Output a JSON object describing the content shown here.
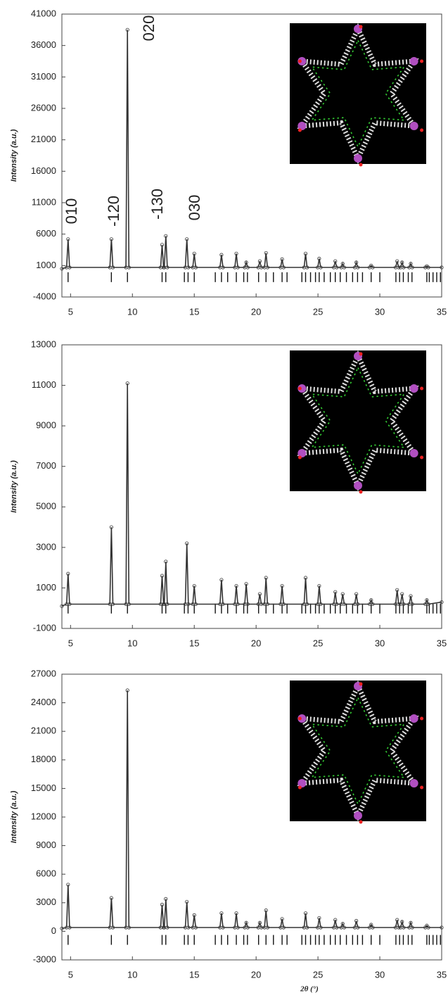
{
  "chart_data": [
    {
      "type": "line",
      "ylabel": "Intensity (a.u.)",
      "color": "#333333",
      "xlim": [
        4.3,
        35
      ],
      "xticks": [
        5,
        10,
        15,
        20,
        25,
        30,
        35
      ],
      "ylim": [
        -4000,
        41000
      ],
      "yticks": [
        -4000,
        1000,
        6000,
        11000,
        16000,
        21000,
        26000,
        31000,
        36000,
        41000
      ],
      "annotations": [
        "010",
        "-120",
        "020",
        "-130",
        "030"
      ],
      "x": [
        4.3,
        4.68,
        4.8,
        4.92,
        8.18,
        8.3,
        8.42,
        9.48,
        9.6,
        9.72,
        12.28,
        12.4,
        12.52,
        12.58,
        12.7,
        12.82,
        14.28,
        14.4,
        14.52,
        14.88,
        15.0,
        15.12,
        17.08,
        17.2,
        17.32,
        18.28,
        18.4,
        18.52,
        19.08,
        19.2,
        19.32,
        20.18,
        20.3,
        20.42,
        20.68,
        20.8,
        20.92,
        21.98,
        22.1,
        22.22,
        23.88,
        24.0,
        24.12,
        24.98,
        25.1,
        25.22,
        26.28,
        26.4,
        26.52,
        26.88,
        27.0,
        27.12,
        27.98,
        28.1,
        28.22,
        29.18,
        29.3,
        29.42,
        31.28,
        31.4,
        31.52,
        31.68,
        31.8,
        31.92,
        32.38,
        32.5,
        32.62,
        33.68,
        33.8,
        33.92,
        35
      ],
      "values": [
        500,
        700,
        5200,
        700,
        700,
        5200,
        700,
        700,
        38500,
        700,
        700,
        4300,
        700,
        700,
        5700,
        700,
        700,
        5200,
        700,
        700,
        2900,
        700,
        700,
        2700,
        700,
        700,
        2900,
        700,
        700,
        1500,
        700,
        700,
        1700,
        700,
        700,
        3000,
        700,
        700,
        2000,
        700,
        700,
        2900,
        700,
        700,
        2100,
        700,
        700,
        1700,
        700,
        700,
        1300,
        700,
        700,
        1500,
        700,
        700,
        1000,
        700,
        700,
        1700,
        700,
        700,
        1500,
        700,
        700,
        1300,
        700,
        700,
        900,
        700,
        700
      ],
      "reflections": [
        4.8,
        8.3,
        9.6,
        12.4,
        12.7,
        14.2,
        14.5,
        15.0,
        16.7,
        17.2,
        17.7,
        18.4,
        19.0,
        19.3,
        20.2,
        20.8,
        21.4,
        22.1,
        22.5,
        23.7,
        24.0,
        24.4,
        24.8,
        25.1,
        25.5,
        26.0,
        26.4,
        26.8,
        27.3,
        27.8,
        28.2,
        28.6,
        29.3,
        30.0,
        31.3,
        31.6,
        31.9,
        32.3,
        32.6,
        33.8,
        34.0,
        34.3,
        34.6,
        34.9
      ]
    },
    {
      "type": "line",
      "ylabel": "Intensity (a.u.)",
      "color": "#333333",
      "xlim": [
        4.3,
        35
      ],
      "xticks": [
        5,
        10,
        15,
        20,
        25,
        30,
        35
      ],
      "ylim": [
        -1000,
        13000
      ],
      "yticks": [
        -1000,
        1000,
        3000,
        5000,
        7000,
        9000,
        11000,
        13000
      ],
      "x": [
        4.3,
        4.68,
        4.8,
        4.92,
        8.18,
        8.3,
        8.42,
        9.48,
        9.6,
        9.72,
        12.28,
        12.4,
        12.52,
        12.58,
        12.7,
        12.82,
        14.28,
        14.4,
        14.52,
        14.88,
        15.0,
        15.12,
        17.08,
        17.2,
        17.32,
        18.28,
        18.4,
        18.52,
        19.08,
        19.2,
        19.32,
        20.18,
        20.3,
        20.42,
        20.68,
        20.8,
        20.92,
        21.98,
        22.1,
        22.22,
        23.88,
        24.0,
        24.12,
        24.98,
        25.1,
        25.22,
        26.28,
        26.4,
        26.52,
        26.88,
        27.0,
        27.12,
        27.98,
        28.1,
        28.22,
        29.18,
        29.3,
        29.42,
        31.28,
        31.4,
        31.52,
        31.68,
        31.8,
        31.92,
        32.38,
        32.5,
        32.62,
        33.68,
        33.8,
        33.92,
        35
      ],
      "values": [
        100,
        200,
        1700,
        200,
        200,
        4000,
        200,
        200,
        11100,
        200,
        200,
        1600,
        200,
        200,
        2300,
        200,
        200,
        3200,
        200,
        200,
        1100,
        200,
        200,
        1400,
        200,
        200,
        1100,
        200,
        200,
        1200,
        200,
        200,
        700,
        200,
        200,
        1500,
        200,
        200,
        1100,
        200,
        200,
        1500,
        200,
        200,
        1100,
        200,
        200,
        800,
        200,
        200,
        700,
        200,
        200,
        700,
        200,
        200,
        400,
        200,
        200,
        900,
        200,
        200,
        700,
        200,
        200,
        600,
        200,
        200,
        400,
        200,
        300
      ],
      "reflections": [
        4.8,
        8.3,
        9.6,
        12.4,
        12.7,
        14.2,
        14.5,
        15.0,
        16.7,
        17.2,
        17.7,
        18.4,
        19.0,
        19.3,
        20.2,
        20.8,
        21.4,
        22.1,
        22.5,
        23.7,
        24.0,
        24.4,
        24.8,
        25.1,
        25.5,
        26.0,
        26.4,
        26.8,
        27.3,
        27.8,
        28.2,
        28.6,
        29.3,
        30.0,
        31.3,
        31.6,
        31.9,
        32.3,
        32.6,
        33.8,
        34.0,
        34.3,
        34.6,
        34.9
      ]
    },
    {
      "type": "line",
      "ylabel": "Intensity (a.u.)",
      "xlabel": "2θ (°)",
      "color": "#333333",
      "xlim": [
        4.3,
        35
      ],
      "xticks": [
        5,
        10,
        15,
        20,
        25,
        30,
        35
      ],
      "ylim": [
        -3000,
        27000
      ],
      "yticks": [
        -3000,
        0,
        3000,
        6000,
        9000,
        12000,
        15000,
        18000,
        21000,
        24000,
        27000
      ],
      "x": [
        4.3,
        4.68,
        4.8,
        4.92,
        8.18,
        8.3,
        8.42,
        9.48,
        9.6,
        9.72,
        12.28,
        12.4,
        12.52,
        12.58,
        12.7,
        12.82,
        14.28,
        14.4,
        14.52,
        14.88,
        15.0,
        15.12,
        17.08,
        17.2,
        17.32,
        18.28,
        18.4,
        18.52,
        19.08,
        19.2,
        19.32,
        20.18,
        20.3,
        20.42,
        20.68,
        20.8,
        20.92,
        21.98,
        22.1,
        22.22,
        23.88,
        24.0,
        24.12,
        24.98,
        25.1,
        25.22,
        26.28,
        26.4,
        26.52,
        26.88,
        27.0,
        27.12,
        27.98,
        28.1,
        28.22,
        29.18,
        29.3,
        29.42,
        31.28,
        31.4,
        31.52,
        31.68,
        31.8,
        31.92,
        32.38,
        32.5,
        32.62,
        33.68,
        33.8,
        33.92,
        35
      ],
      "values": [
        300,
        400,
        4900,
        400,
        400,
        3500,
        400,
        400,
        25300,
        400,
        400,
        2800,
        400,
        400,
        3400,
        400,
        400,
        3100,
        400,
        400,
        1700,
        400,
        400,
        1900,
        400,
        400,
        1900,
        400,
        400,
        900,
        400,
        400,
        900,
        400,
        400,
        2200,
        400,
        400,
        1300,
        400,
        400,
        1900,
        400,
        400,
        1400,
        400,
        400,
        1200,
        400,
        400,
        800,
        400,
        400,
        1100,
        400,
        400,
        700,
        400,
        400,
        1200,
        400,
        400,
        1000,
        400,
        400,
        900,
        400,
        400,
        600,
        400,
        400
      ],
      "reflections": [
        4.8,
        8.3,
        9.6,
        12.4,
        12.7,
        14.2,
        14.5,
        15.0,
        16.7,
        17.2,
        17.7,
        18.4,
        19.0,
        19.3,
        20.2,
        20.8,
        21.4,
        22.1,
        22.5,
        23.7,
        24.0,
        24.4,
        24.8,
        25.1,
        25.5,
        26.0,
        26.4,
        26.8,
        27.3,
        27.8,
        28.2,
        28.6,
        29.3,
        30.0,
        31.3,
        31.6,
        31.9,
        32.3,
        32.6,
        33.8,
        34.0,
        34.3,
        34.6,
        34.9
      ]
    }
  ]
}
